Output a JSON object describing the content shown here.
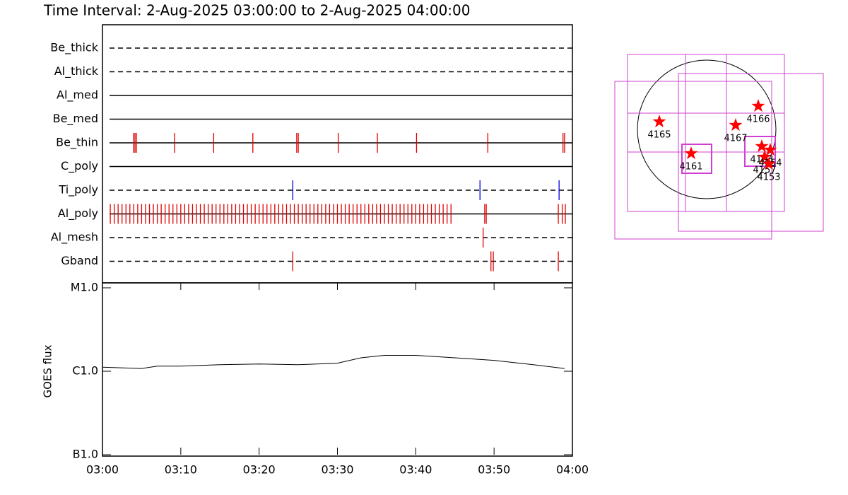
{
  "chart_data": [
    {
      "type": "timeline",
      "title": "Time Interval:  2-Aug-2025 03:00:00 to  2-Aug-2025 04:00:00",
      "xlim": [
        0,
        60
      ],
      "rows": [
        {
          "name": "Be_thick",
          "color": "#e00000",
          "dashed": true,
          "values": []
        },
        {
          "name": "Al_thick",
          "color": "#e00000",
          "dashed": true,
          "values": []
        },
        {
          "name": "Al_med",
          "color": "#e00000",
          "dashed": false,
          "values": []
        },
        {
          "name": "Be_med",
          "color": "#e00000",
          "dashed": false,
          "values": []
        },
        {
          "name": "Be_thin",
          "color": "#e00000",
          "dashed": false,
          "values": [
            3.97,
            4.15,
            4.33,
            9.2,
            14.2,
            19.2,
            24.8,
            25.0,
            30.1,
            35.1,
            40.1,
            49.2,
            58.8,
            59.0
          ]
        },
        {
          "name": "C_poly",
          "color": "#e00000",
          "dashed": false,
          "values": []
        },
        {
          "name": "Ti_poly",
          "color": "#0000e0",
          "dashed": true,
          "values": [
            24.3,
            48.2,
            58.3
          ]
        },
        {
          "name": "Al_poly",
          "color": "#e00000",
          "dashed": false,
          "values": [
            1,
            1.5,
            2,
            2.5,
            3,
            3.5,
            4,
            4.5,
            5,
            5.5,
            6,
            6.5,
            7,
            7.5,
            8,
            8.5,
            9,
            9.5,
            10,
            10.5,
            11,
            11.5,
            12,
            12.5,
            13,
            13.5,
            14,
            14.5,
            15,
            15.5,
            16,
            16.5,
            17,
            17.5,
            18,
            18.5,
            19,
            19.5,
            20,
            20.5,
            21,
            21.5,
            22,
            22.5,
            23,
            23.5,
            24,
            24.5,
            25,
            25.5,
            26,
            26.5,
            27,
            27.5,
            28,
            28.5,
            29,
            29.5,
            30,
            30.5,
            31,
            31.5,
            32,
            32.5,
            33,
            33.5,
            34,
            34.5,
            35,
            35.5,
            36,
            36.5,
            37,
            37.5,
            38,
            38.5,
            39,
            39.5,
            40,
            40.5,
            41,
            41.5,
            42,
            42.5,
            43,
            43.5,
            44,
            44.5,
            48.8,
            49.0,
            58.2,
            58.7,
            59.1
          ]
        },
        {
          "name": "Al_mesh",
          "color": "#e00000",
          "dashed": true,
          "values": [
            48.6
          ]
        },
        {
          "name": "Gband",
          "color": "#e00000",
          "dashed": true,
          "values": [
            24.3,
            49.6,
            49.9,
            58.2
          ]
        }
      ]
    },
    {
      "type": "line",
      "ylabel": "GOES flux",
      "log": true,
      "color": "#000000",
      "x": [
        0,
        5,
        7,
        10,
        15,
        20,
        25,
        30,
        33,
        36,
        40,
        45,
        50,
        55,
        59
      ],
      "values": [
        1.12e-06,
        1.08e-06,
        1.15e-06,
        1.15e-06,
        1.2e-06,
        1.22e-06,
        1.2e-06,
        1.25e-06,
        1.45e-06,
        1.55e-06,
        1.55e-06,
        1.45e-06,
        1.35e-06,
        1.2e-06,
        1.08e-06
      ],
      "xlim": [
        0,
        60
      ],
      "xticks": [
        {
          "value": 0,
          "label": "03:00"
        },
        {
          "value": 10,
          "label": "03:10"
        },
        {
          "value": 20,
          "label": "03:20"
        },
        {
          "value": 30,
          "label": "03:30"
        },
        {
          "value": 40,
          "label": "03:40"
        },
        {
          "value": 50,
          "label": "03:50"
        },
        {
          "value": 60,
          "label": "04:00"
        }
      ],
      "ylim": [
        1e-07,
        1e-05
      ],
      "yticks": [
        {
          "value": 1e-07,
          "label": "B1.0"
        },
        {
          "value": 1e-06,
          "label": "C1.0"
        },
        {
          "value": 1e-05,
          "label": "M1.0"
        }
      ]
    }
  ],
  "map": {
    "labels": [
      "4165",
      "4166",
      "4167",
      "4161",
      "4163",
      "4157",
      "4154",
      "4153"
    ]
  }
}
